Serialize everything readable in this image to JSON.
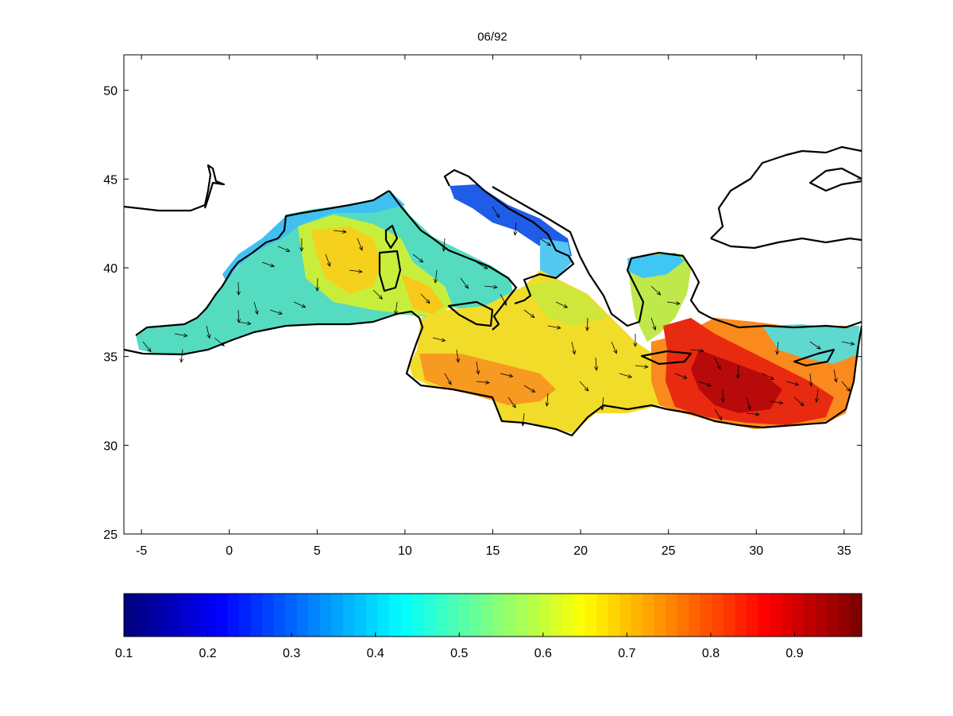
{
  "figure": {
    "title": "06/92"
  },
  "map": {
    "x_range": [
      -6,
      36
    ],
    "y_range": [
      25,
      52
    ],
    "x_ticks": [
      -5,
      0,
      5,
      10,
      15,
      20,
      25,
      30,
      35
    ],
    "y_ticks": [
      25,
      30,
      35,
      40,
      45,
      50
    ],
    "x_tick_labels": [
      "-5",
      "0",
      "5",
      "10",
      "15",
      "20",
      "25",
      "30",
      "35"
    ],
    "y_tick_labels": [
      "25",
      "30",
      "35",
      "40",
      "45",
      "50"
    ],
    "field": "scalar field with vector arrows over the Mediterranean Sea"
  },
  "colorbar": {
    "range": [
      0.1,
      0.98
    ],
    "ticks": [
      0.1,
      0.2,
      0.3,
      0.4,
      0.5,
      0.6,
      0.7,
      0.8,
      0.9
    ],
    "tick_labels": [
      "0.1",
      "0.2",
      "0.3",
      "0.4",
      "0.5",
      "0.6",
      "0.7",
      "0.8",
      "0.9"
    ],
    "colormap": "jet",
    "steps": 64
  },
  "colors": {
    "land_outline": "#000000",
    "background": "#ffffff",
    "axis": "#000000"
  }
}
